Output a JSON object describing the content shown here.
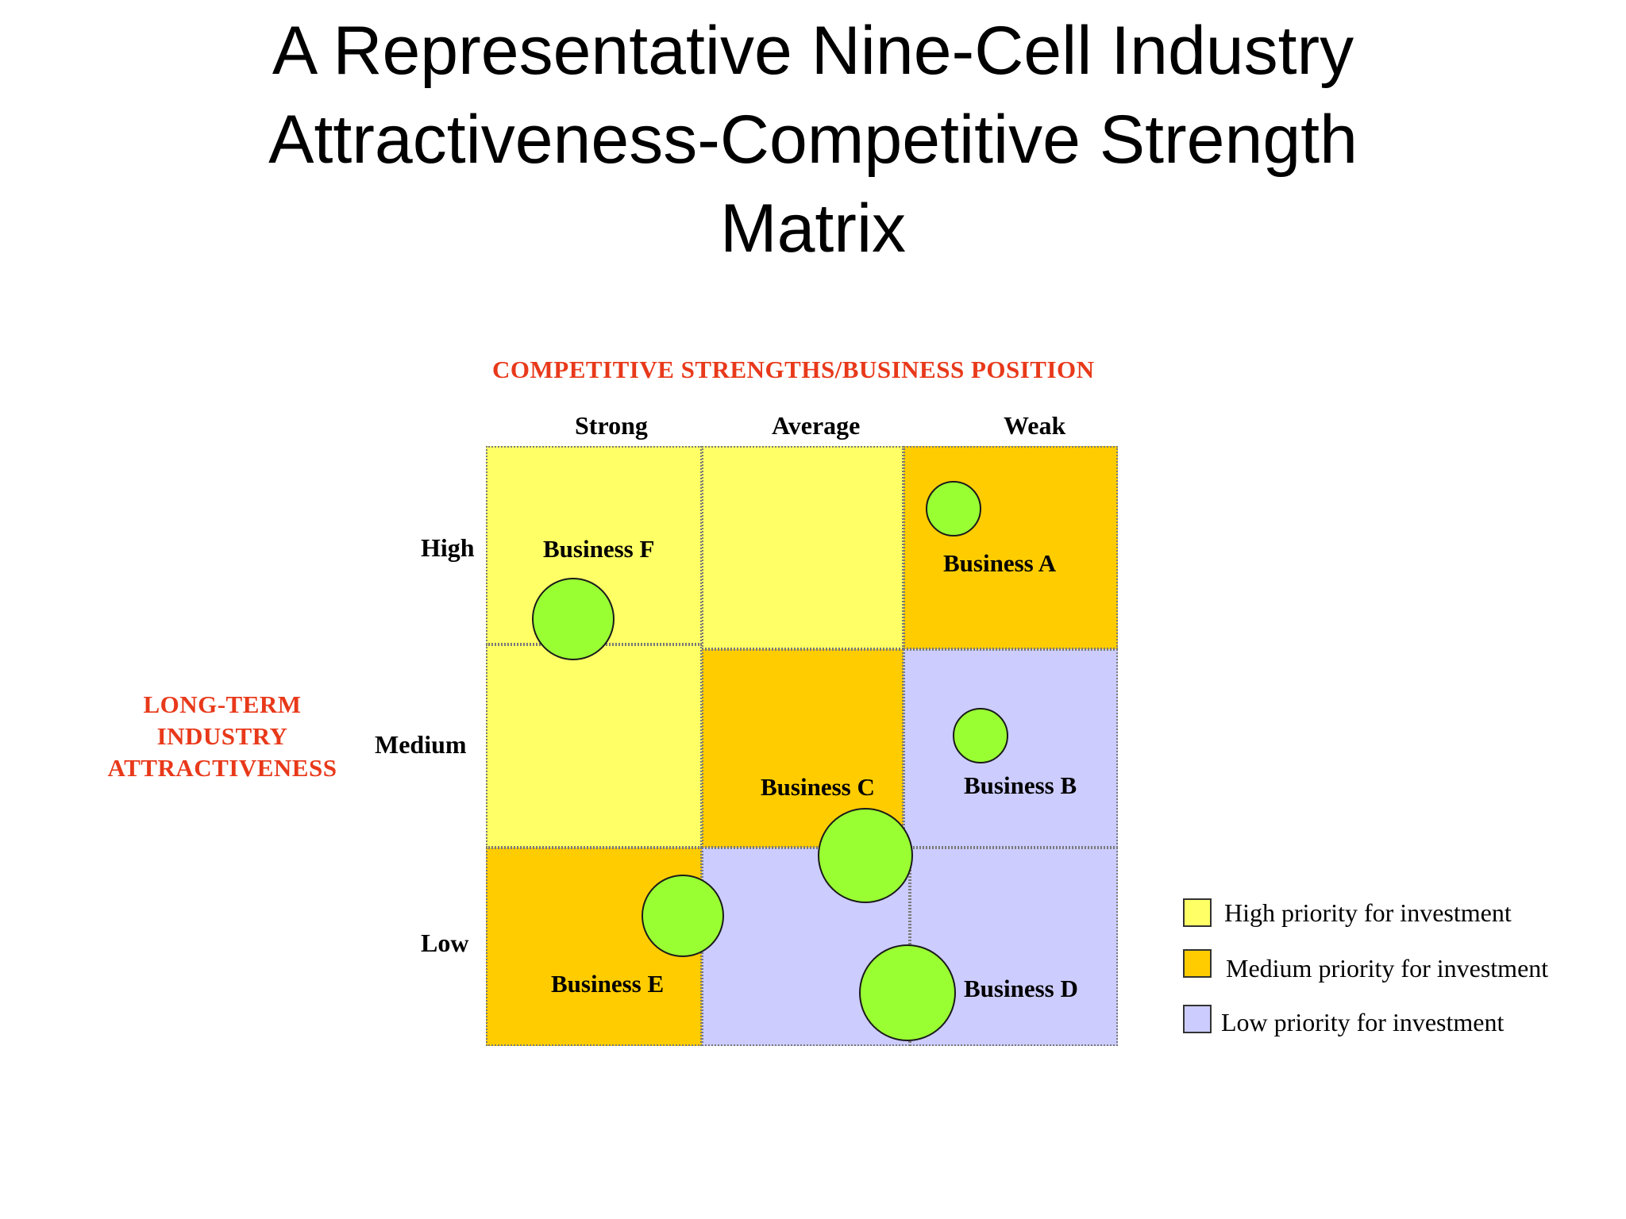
{
  "title_lines": [
    "A Representative Nine-Cell Industry",
    "Attractiveness-Competitive Strength",
    "Matrix"
  ],
  "x_axis_title": "COMPETITIVE STRENGTHS/BUSINESS POSITION",
  "y_axis_title_lines": [
    "LONG-TERM",
    "INDUSTRY",
    "ATTRACTIVENESS"
  ],
  "columns": [
    "Strong",
    "Average",
    "Weak"
  ],
  "rows": [
    "High",
    "Medium",
    "Low"
  ],
  "colors": {
    "high": "#ffff66",
    "medium": "#ffcc00",
    "low": "#ccccff",
    "axis_title": "#e8391a",
    "bubble": "#99ff33"
  },
  "cells": [
    [
      "high",
      "high",
      "medium"
    ],
    [
      "high",
      "medium",
      "low"
    ],
    [
      "medium",
      "low",
      "low"
    ]
  ],
  "businesses": [
    {
      "name": "Business A",
      "column": "Weak",
      "row": "High"
    },
    {
      "name": "Business B",
      "column": "Weak",
      "row": "Medium"
    },
    {
      "name": "Business C",
      "column": "Average",
      "row": "Medium"
    },
    {
      "name": "Business D",
      "column": "Weak",
      "row": "Low"
    },
    {
      "name": "Business E",
      "column": "Strong",
      "row": "Low"
    },
    {
      "name": "Business F",
      "column": "Strong",
      "row": "High"
    }
  ],
  "legend": [
    {
      "label": "High priority for investment",
      "level": "high"
    },
    {
      "label": "Medium priority for investment",
      "level": "medium"
    },
    {
      "label": "Low priority for investment",
      "level": "low"
    }
  ]
}
